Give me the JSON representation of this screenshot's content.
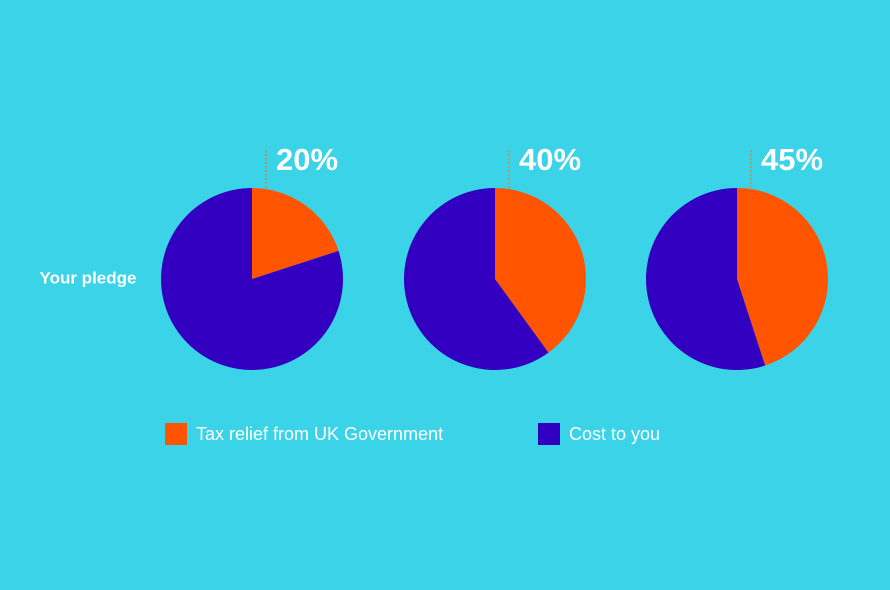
{
  "chart_data": {
    "type": "pie",
    "row_label": "Your pledge",
    "series": [
      {
        "name": "Tax relief from UK Government",
        "color": "#ff5500",
        "values": [
          20,
          40,
          45
        ],
        "value_labels": [
          "20%",
          "40%",
          "45%"
        ]
      },
      {
        "name": "Cost to you",
        "color": "#3300c2",
        "values": [
          80,
          60,
          55
        ]
      }
    ]
  }
}
